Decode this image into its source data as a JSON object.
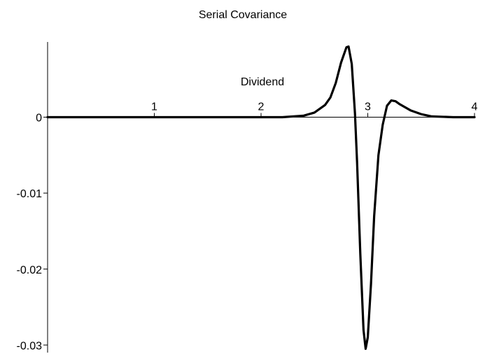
{
  "chart_data": {
    "type": "line",
    "title": "Serial Covariance",
    "xlabel": "Dividend",
    "x": [
      0,
      2.2,
      2.4,
      2.5,
      2.6,
      2.65,
      2.7,
      2.75,
      2.8,
      2.82,
      2.85,
      2.88,
      2.9,
      2.93,
      2.96,
      2.98,
      3.0,
      3.03,
      3.06,
      3.1,
      3.14,
      3.18,
      3.22,
      3.26,
      3.3,
      3.4,
      3.5,
      3.6,
      3.8,
      4.0
    ],
    "series": [
      {
        "color": "#000000",
        "values": [
          0,
          0,
          0.0002,
          0.0006,
          0.0016,
          0.0026,
          0.0045,
          0.0072,
          0.0092,
          0.0093,
          0.007,
          0.0005,
          -0.006,
          -0.018,
          -0.028,
          -0.0305,
          -0.029,
          -0.022,
          -0.013,
          -0.005,
          -0.001,
          0.0015,
          0.0022,
          0.0021,
          0.0017,
          0.0009,
          0.0004,
          0.0001,
          0,
          0
        ]
      }
    ],
    "xlim": [
      0,
      4
    ],
    "ylim": [
      -0.031,
      0.0099
    ],
    "xticks": [
      1,
      2,
      3,
      4
    ],
    "yticks": [
      0,
      -0.01,
      -0.02,
      -0.03
    ]
  }
}
